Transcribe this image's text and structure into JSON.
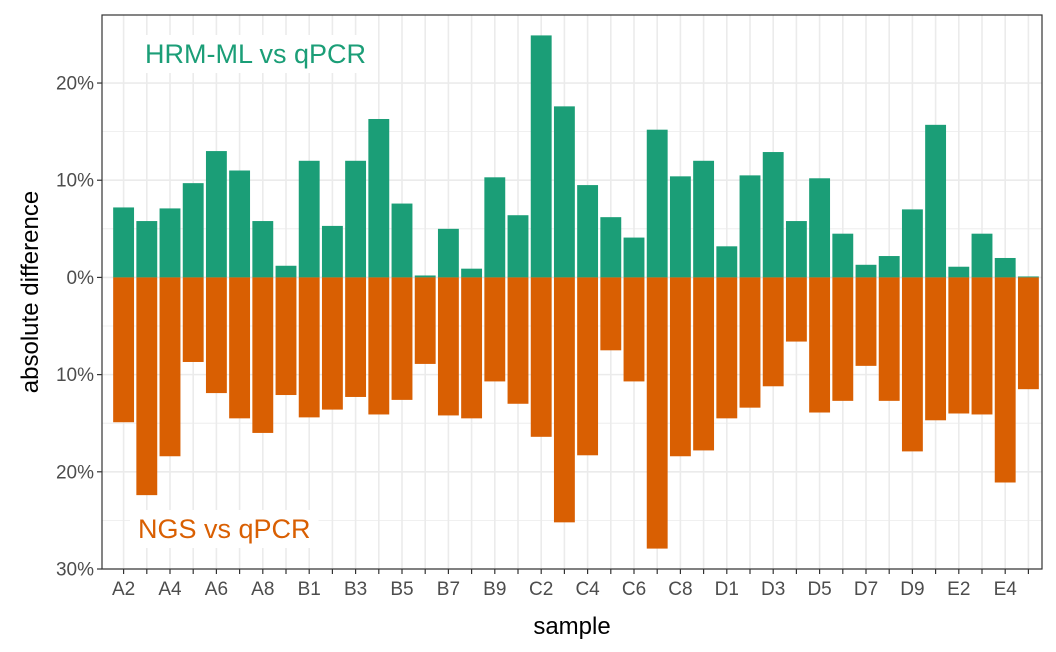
{
  "chart_data": {
    "type": "bar",
    "xlabel": "sample",
    "ylabel": "absolute difference",
    "ylim": [
      -30,
      27
    ],
    "y_ticks": [
      {
        "value": 20,
        "label": "20%"
      },
      {
        "value": 10,
        "label": "10%"
      },
      {
        "value": 0,
        "label": "0%"
      },
      {
        "value": -10,
        "label": "10%"
      },
      {
        "value": -20,
        "label": "20%"
      },
      {
        "value": -30,
        "label": "30%"
      }
    ],
    "x_tick_labels": [
      "A2",
      "A4",
      "A6",
      "A8",
      "B1",
      "B3",
      "B5",
      "B7",
      "B9",
      "C2",
      "C4",
      "C6",
      "C8",
      "D1",
      "D3",
      "D5",
      "D7",
      "D9",
      "E2",
      "E4"
    ],
    "grid": true,
    "annotations": [
      {
        "text": "HRM-ML vs qPCR",
        "series": "top",
        "color": "#1b9e77",
        "placement": "top-left"
      },
      {
        "text": "NGS vs qPCR",
        "series": "bottom",
        "color": "#d95f02",
        "placement": "bottom-left"
      }
    ],
    "series": [
      {
        "color": "#1b9e77",
        "direction": "up",
        "values": [
          7.2,
          5.8,
          7.1,
          9.7,
          13.0,
          11.0,
          5.8,
          1.2,
          12.0,
          5.3,
          12.0,
          16.3,
          7.6,
          0.2,
          5.0,
          0.9,
          10.3,
          6.4,
          24.9,
          17.6,
          9.5,
          6.2,
          4.1,
          15.2,
          10.4,
          12.0,
          3.2,
          10.5,
          12.9,
          5.8,
          10.2,
          4.5,
          1.3,
          2.2,
          7.0,
          15.7,
          1.1,
          4.5,
          2.0,
          0.1
        ]
      },
      {
        "color": "#d95f02",
        "direction": "down",
        "values": [
          14.9,
          22.4,
          18.4,
          8.7,
          11.9,
          14.5,
          16.0,
          12.1,
          14.4,
          13.6,
          12.3,
          14.1,
          12.6,
          8.9,
          14.2,
          14.5,
          10.7,
          13.0,
          16.4,
          25.2,
          18.3,
          7.5,
          10.7,
          27.9,
          18.4,
          17.8,
          14.5,
          13.4,
          11.2,
          6.6,
          13.9,
          12.7,
          9.1,
          12.7,
          17.9,
          14.7,
          14.0,
          14.1,
          21.1,
          11.5
        ]
      }
    ]
  }
}
